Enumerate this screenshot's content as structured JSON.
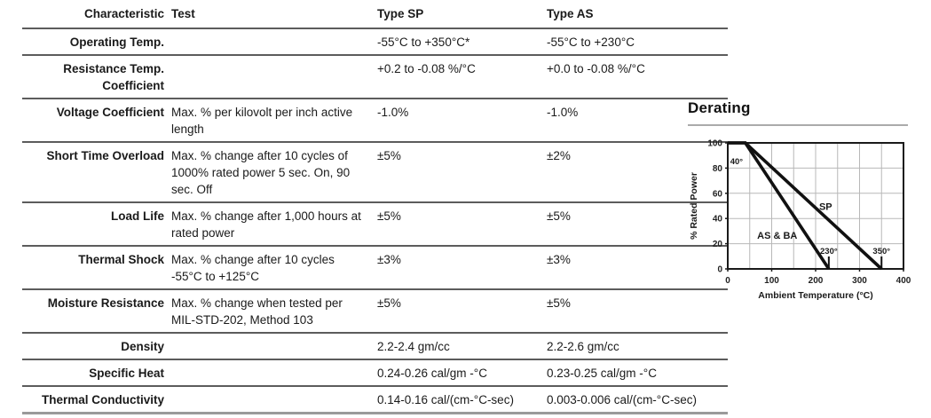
{
  "table": {
    "headers": [
      "Characteristic",
      "Test",
      "Type SP",
      "Type AS"
    ],
    "rows": [
      {
        "characteristic": "Operating Temp.",
        "test": "",
        "sp": "-55°C to +350°C*",
        "as": "-55°C to +230°C"
      },
      {
        "characteristic": "Resistance Temp. Coefficient",
        "test": "",
        "sp": "+0.2 to -0.08 %/°C",
        "as": "+0.0 to -0.08 %/°C"
      },
      {
        "characteristic": "Voltage Coefficient",
        "test": "Max. % per kilovolt per inch active length",
        "sp": "-1.0%",
        "as": "-1.0%"
      },
      {
        "characteristic": "Short Time Overload",
        "test": "Max. % change after 10 cycles of 1000% rated power 5 sec. On, 90 sec. Off",
        "sp": "±5%",
        "as": "±2%"
      },
      {
        "characteristic": "Load Life",
        "test": "Max. % change after 1,000 hours at rated power",
        "sp": "±5%",
        "as": "±5%"
      },
      {
        "characteristic": "Thermal Shock",
        "test": "Max. % change after 10 cycles -55°C to +125°C",
        "sp": "±3%",
        "as": "±3%"
      },
      {
        "characteristic": "Moisture Resistance",
        "test": "Max. % change when tested per MIL-STD-202, Method 103",
        "sp": "±5%",
        "as": "±5%"
      },
      {
        "characteristic": "Density",
        "test": "",
        "sp": "2.2-2.4 gm/cc",
        "as": "2.2-2.6 gm/cc"
      },
      {
        "characteristic": "Specific Heat",
        "test": "",
        "sp": "0.24-0.26 cal/gm -°C",
        "as": "0.23-0.25 cal/gm -°C"
      },
      {
        "characteristic": "Thermal Conductivity",
        "test": "",
        "sp": "0.14-0.16 cal/(cm-°C-sec)",
        "as": "0.003-0.006 cal/(cm-°C-sec)"
      }
    ]
  },
  "chart_data": {
    "type": "line",
    "title": "Derating",
    "xlabel": "Ambient Temperature (°C)",
    "ylabel": "% Rated Power",
    "xlim": [
      0,
      400
    ],
    "ylim": [
      0,
      100
    ],
    "x_ticks": [
      0,
      100,
      200,
      300,
      400
    ],
    "y_ticks": [
      0,
      20,
      40,
      60,
      80,
      100
    ],
    "x_grid_step": 50,
    "y_grid_step": 20,
    "grid": true,
    "legend_position": "inline-labels",
    "line_color": "#111111",
    "grid_color": "#b8b8b8",
    "series": [
      {
        "name": "SP",
        "points": [
          [
            0,
            100
          ],
          [
            40,
            100
          ],
          [
            350,
            0
          ]
        ],
        "label_pos": [
          208,
          47
        ],
        "end_label": "350°",
        "end_x": 350
      },
      {
        "name": "AS & BA",
        "points": [
          [
            0,
            100
          ],
          [
            40,
            100
          ],
          [
            230,
            0
          ]
        ],
        "label_pos": [
          67,
          24
        ],
        "end_label": "230°",
        "end_x": 230
      }
    ],
    "annotations": [
      {
        "text": "40°",
        "x": 20,
        "y": 83
      }
    ]
  }
}
